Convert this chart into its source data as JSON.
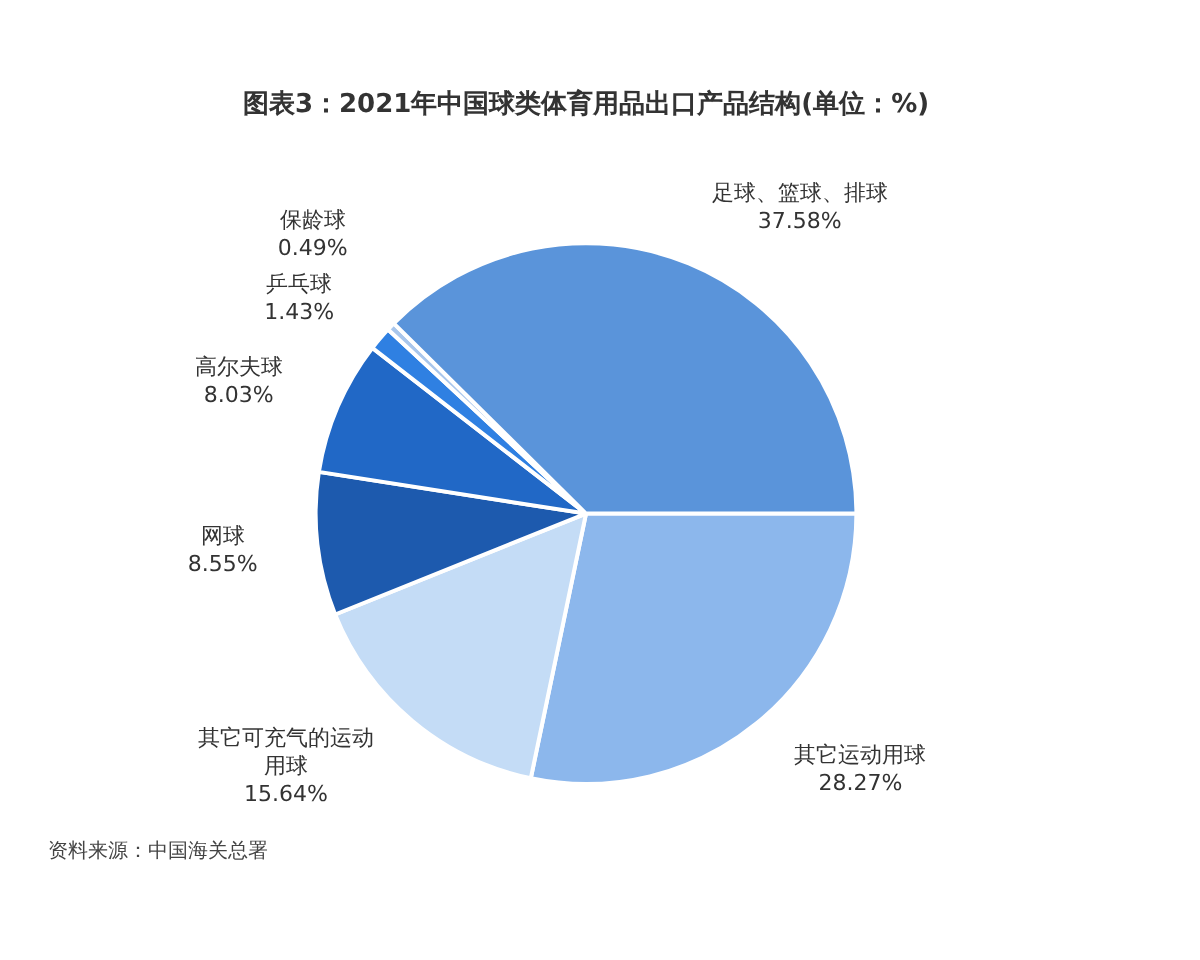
{
  "chart_data": {
    "type": "pie",
    "title": "图表3：2021年中国球类体育用品出口产品结构(单位：%)",
    "categories": [
      "其它运动用球",
      "其它可充气的运动用球",
      "网球",
      "高尔夫球",
      "乒乓球",
      "保龄球",
      "足球、篮球、排球"
    ],
    "values": [
      28.27,
      15.64,
      8.55,
      8.03,
      1.43,
      0.49,
      37.58
    ],
    "value_labels": [
      "28.27%",
      "15.64%",
      "8.55%",
      "8.03%",
      "1.43%",
      "0.49%",
      "37.58%"
    ],
    "colors": [
      "#8cb7ec",
      "#c4dcf6",
      "#1d5aae",
      "#2168c6",
      "#2f80e2",
      "#a8c6ec",
      "#5a94da"
    ],
    "annotations": [
      "资料来源：中国海关总署"
    ]
  }
}
